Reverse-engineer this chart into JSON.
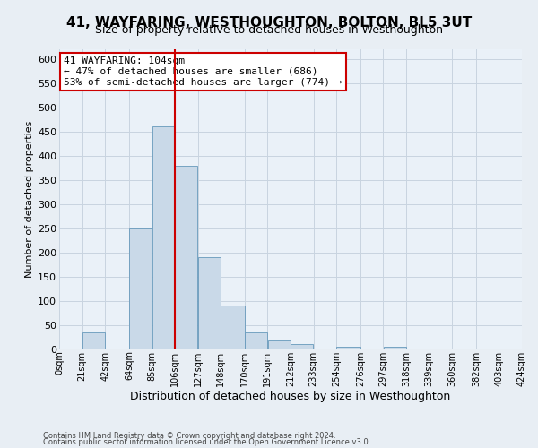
{
  "title": "41, WAYFARING, WESTHOUGHTON, BOLTON, BL5 3UT",
  "subtitle": "Size of property relative to detached houses in Westhoughton",
  "xlabel": "Distribution of detached houses by size in Westhoughton",
  "ylabel": "Number of detached properties",
  "footnote1": "Contains HM Land Registry data © Crown copyright and database right 2024.",
  "footnote2": "Contains public sector information licensed under the Open Government Licence v3.0.",
  "bar_left_edges": [
    0,
    21,
    42,
    64,
    85,
    106,
    127,
    148,
    170,
    191,
    212,
    233,
    254,
    276,
    297,
    318,
    339,
    360,
    382,
    403
  ],
  "bar_widths": [
    21,
    21,
    22,
    21,
    21,
    21,
    21,
    22,
    21,
    21,
    21,
    21,
    22,
    21,
    21,
    21,
    21,
    22,
    21,
    21
  ],
  "bar_heights": [
    2,
    35,
    0,
    250,
    460,
    380,
    190,
    90,
    35,
    18,
    12,
    0,
    5,
    0,
    5,
    0,
    0,
    0,
    0,
    2
  ],
  "bar_color": "#c9d9e8",
  "bar_edge_color": "#6699bb",
  "marker_x": 106,
  "marker_color": "#cc0000",
  "annotation_lines": [
    "41 WAYFARING: 104sqm",
    "← 47% of detached houses are smaller (686)",
    "53% of semi-detached houses are larger (774) →"
  ],
  "xlim": [
    0,
    424
  ],
  "ylim": [
    0,
    620
  ],
  "yticks": [
    0,
    50,
    100,
    150,
    200,
    250,
    300,
    350,
    400,
    450,
    500,
    550,
    600
  ],
  "xtick_positions": [
    0,
    21,
    42,
    64,
    85,
    106,
    127,
    148,
    170,
    191,
    212,
    233,
    254,
    276,
    297,
    318,
    339,
    360,
    382,
    403,
    424
  ],
  "xtick_labels": [
    "0sqm",
    "21sqm",
    "42sqm",
    "64sqm",
    "85sqm",
    "106sqm",
    "127sqm",
    "148sqm",
    "170sqm",
    "191sqm",
    "212sqm",
    "233sqm",
    "254sqm",
    "276sqm",
    "297sqm",
    "318sqm",
    "339sqm",
    "360sqm",
    "382sqm",
    "403sqm",
    "424sqm"
  ],
  "grid_color": "#c8d4e0",
  "background_color": "#e8eef4",
  "plot_bg_color": "#eaf1f8",
  "title_fontsize": 11,
  "subtitle_fontsize": 9,
  "ylabel_fontsize": 8,
  "xlabel_fontsize": 9,
  "ytick_fontsize": 8,
  "xtick_fontsize": 7,
  "annot_fontsize": 8,
  "footnote_fontsize": 6
}
